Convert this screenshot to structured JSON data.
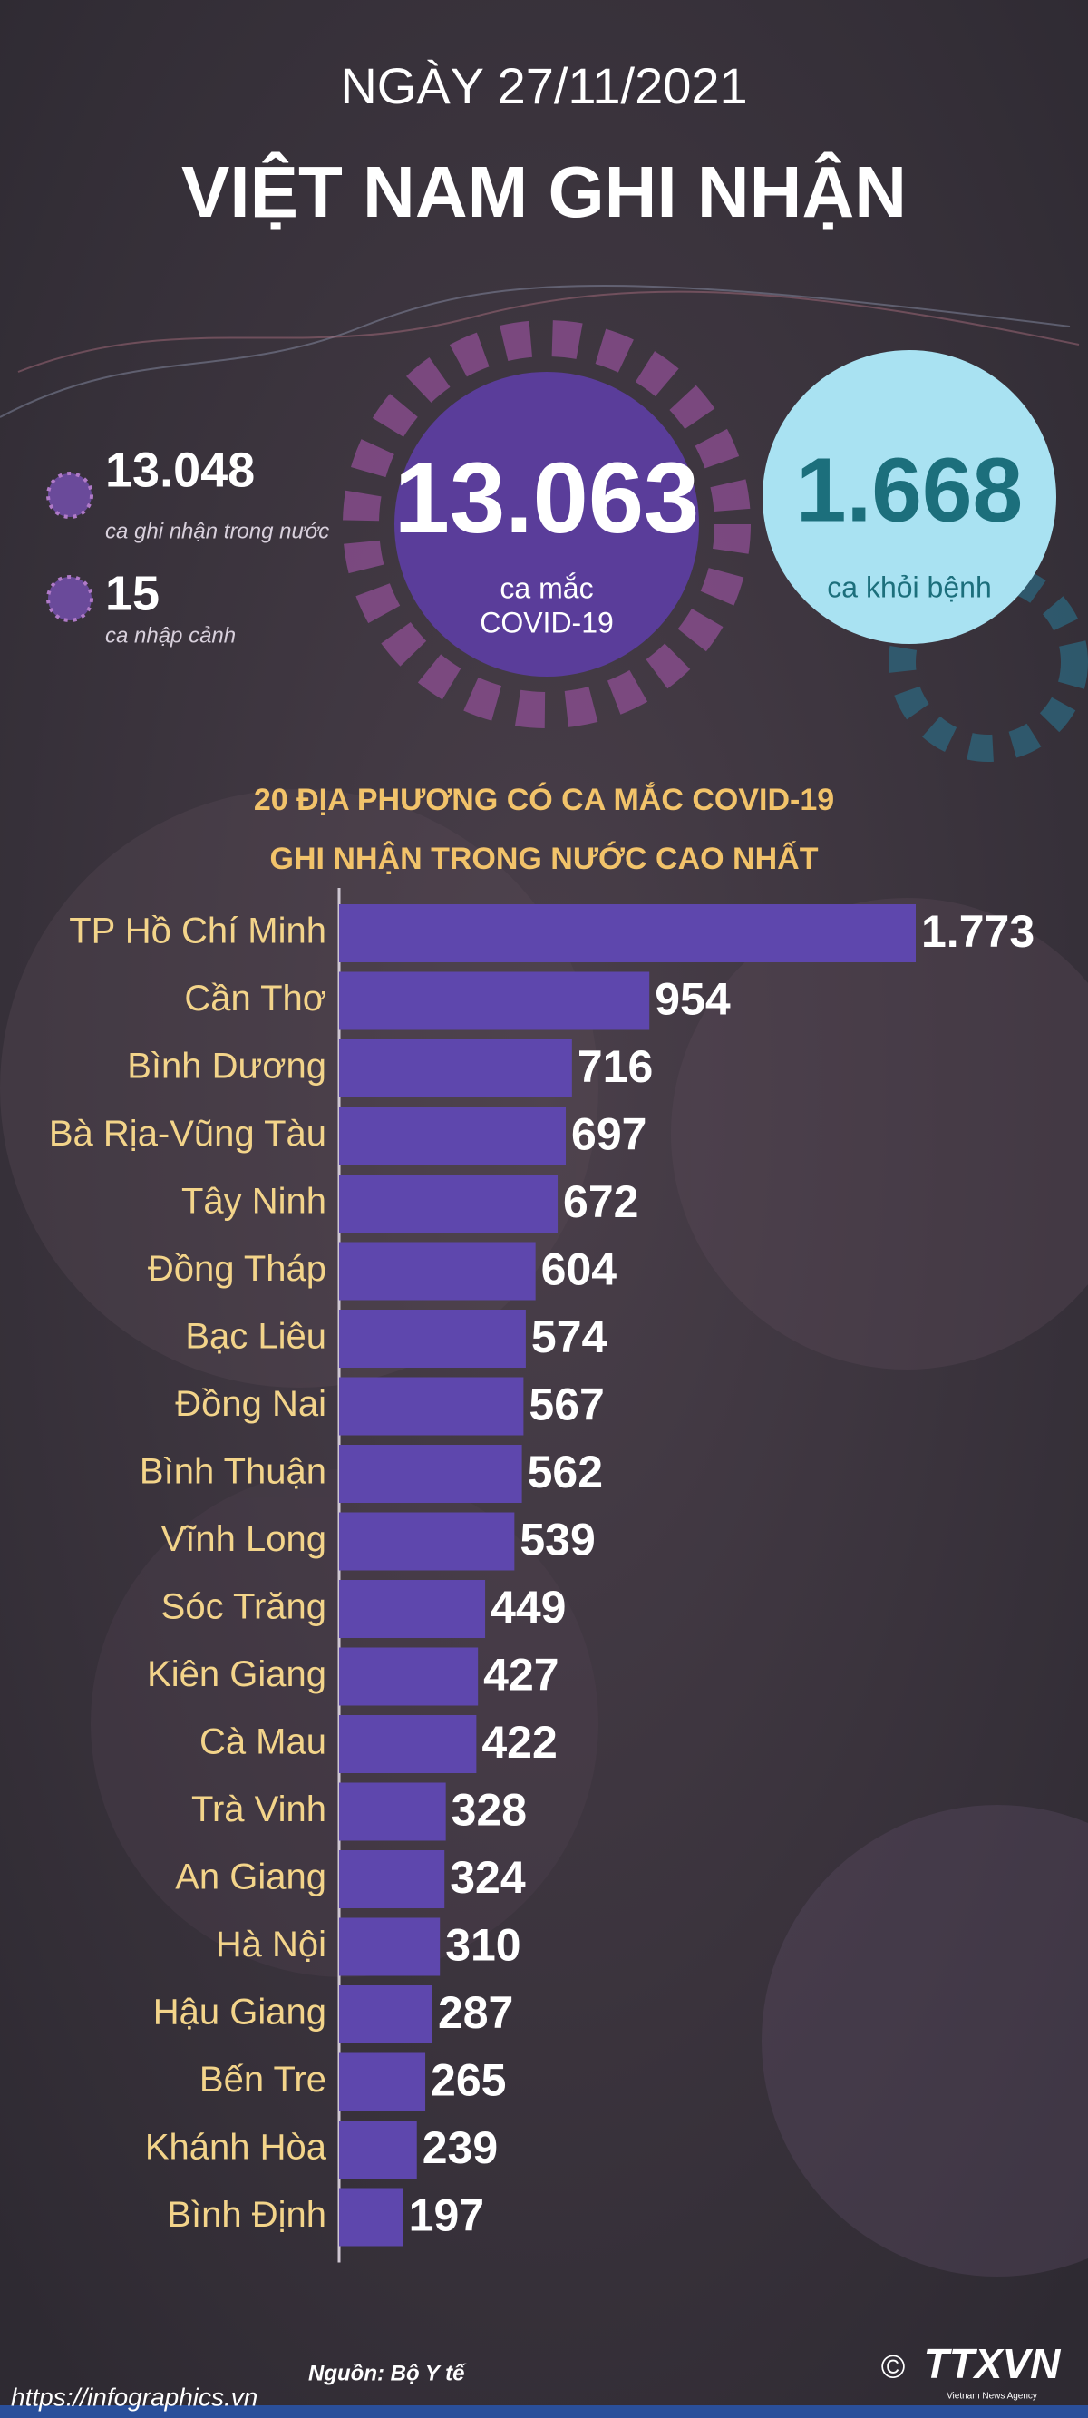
{
  "header": {
    "date": "NGÀY 27/11/2021",
    "title": "VIỆT NAM GHI NHẬN"
  },
  "stats": {
    "domestic": {
      "value": "13.048",
      "label": "ca ghi nhận trong nước"
    },
    "imported": {
      "value": "15",
      "label": "ca nhập cảnh"
    },
    "total": {
      "value": "13.063",
      "label_lines": [
        "ca mắc",
        "COVID-19"
      ]
    },
    "recovered": {
      "value": "1.668",
      "label": "ca khỏi bệnh"
    }
  },
  "chart_data": {
    "type": "bar",
    "orientation": "horizontal",
    "title": "20 ĐỊA PHƯƠNG CÓ CA MẮC COVID-19",
    "subtitle": "GHI NHẬN TRONG NƯỚC CAO NHẤT",
    "categories": [
      "TP Hồ Chí Minh",
      "Cần Thơ",
      "Bình Dương",
      "Bà Rịa-Vũng Tàu",
      "Tây Ninh",
      "Đồng Tháp",
      "Bạc Liêu",
      "Đồng Nai",
      "Bình Thuận",
      "Vĩnh Long",
      "Sóc Trăng",
      "Kiên Giang",
      "Cà Mau",
      "Trà Vinh",
      "An Giang",
      "Hà Nội",
      "Hậu Giang",
      "Bến Tre",
      "Khánh Hòa",
      "Bình Định"
    ],
    "values": [
      1773,
      954,
      716,
      697,
      672,
      604,
      574,
      567,
      562,
      539,
      449,
      427,
      422,
      328,
      324,
      310,
      287,
      265,
      239,
      197
    ],
    "value_labels": [
      "1.773",
      "954",
      "716",
      "697",
      "672",
      "604",
      "574",
      "567",
      "562",
      "539",
      "449",
      "427",
      "422",
      "328",
      "324",
      "310",
      "287",
      "265",
      "239",
      "197"
    ],
    "color": "#5e47ad"
  },
  "footer": {
    "source": "Nguồn: Bộ Y tế",
    "copyright": "©",
    "logo": "TTXVN",
    "logo_sub": "Vietnam News Agency",
    "url": "https://infographics.vn"
  }
}
